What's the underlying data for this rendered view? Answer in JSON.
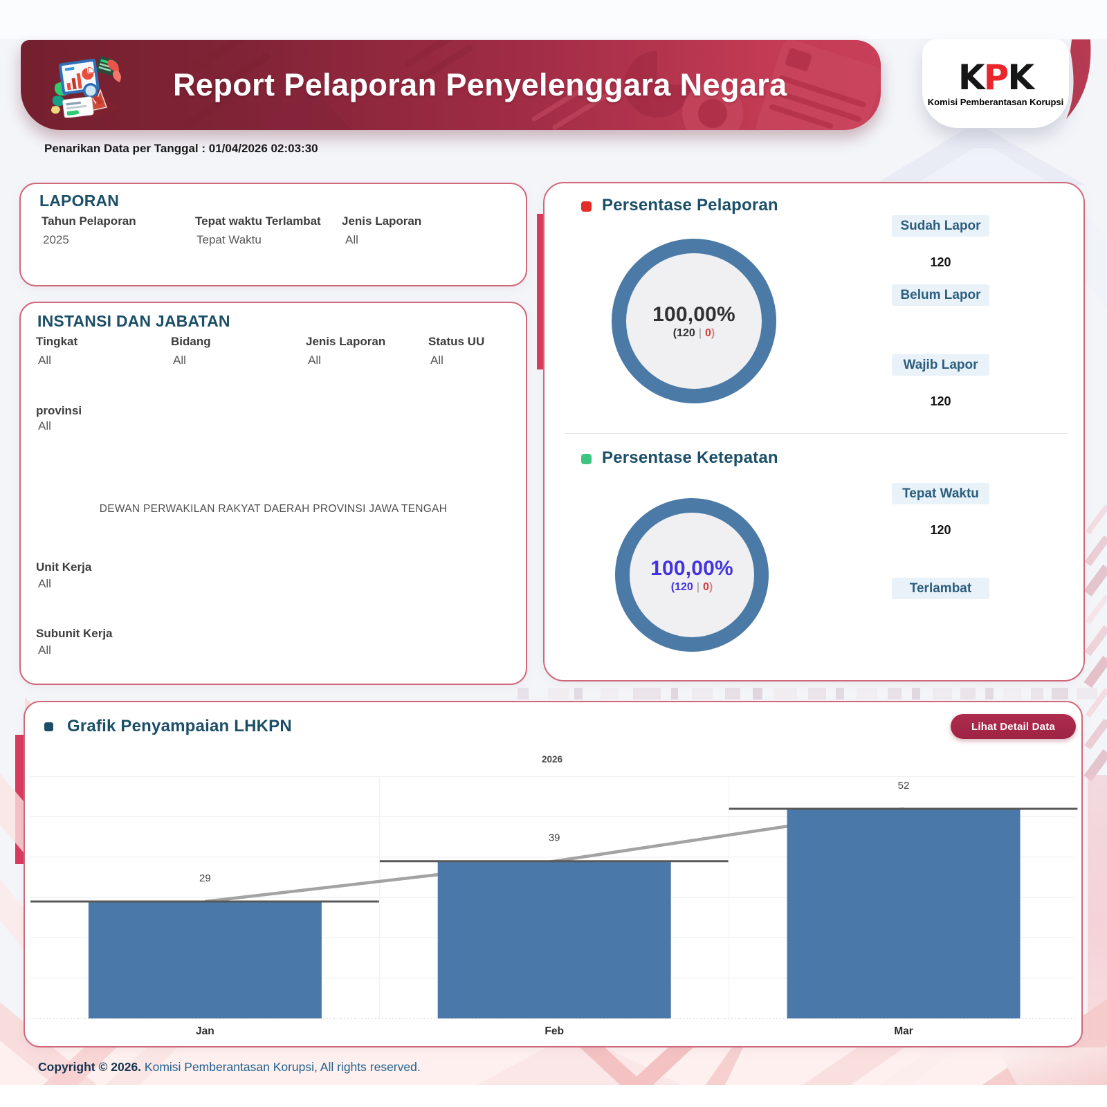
{
  "header": {
    "title": "Report Pelaporan Penyelenggara Negara",
    "logo": {
      "k1": "K",
      "p": "P",
      "k2": "K",
      "subtitle": "Komisi Pemberantasan Korupsi"
    },
    "date_label": "Penarikan Data per Tanggal : 01/04/2026 02:03:30"
  },
  "laporan": {
    "title": "LAPORAN",
    "fields": [
      {
        "label": "Tahun Pelaporan",
        "value": "2025"
      },
      {
        "label": "Tepat waktu Terlambat",
        "value": "Tepat Waktu"
      },
      {
        "label": "Jenis Laporan",
        "value": "All"
      }
    ]
  },
  "instansi": {
    "title": "INSTANSI DAN JABATAN",
    "fields": [
      {
        "label": "Tingkat",
        "value": "All"
      },
      {
        "label": "Bidang",
        "value": "All"
      },
      {
        "label": "Jenis Laporan",
        "value": "All"
      },
      {
        "label": "Status UU",
        "value": "All"
      }
    ],
    "provinsi": {
      "label": "provinsi",
      "value": "All"
    },
    "instansi_name": "DEWAN PERWAKILAN RAKYAT DAERAH PROVINSI JAWA TENGAH",
    "unit_kerja": {
      "label": "Unit Kerja",
      "value": "All"
    },
    "subunit_kerja": {
      "label": "Subunit Kerja",
      "value": "All"
    }
  },
  "pelaporan": {
    "title": "Persentase Pelaporan",
    "bullet_color": "#e32d2a",
    "percent": "100,00%",
    "detail": {
      "open": "(120",
      "sep": "|",
      "zero": "0",
      "close": ")"
    },
    "labels": [
      {
        "text": "Sudah Lapor",
        "value": "120"
      },
      {
        "text": "Belum Lapor",
        "value": ""
      },
      {
        "text": "Wajib Lapor",
        "value": "120"
      }
    ]
  },
  "ketepatan": {
    "title": "Persentase Ketepatan",
    "bullet_color": "#3ec581",
    "percent": "100,00%",
    "detail": {
      "open": "(120",
      "sep": "|",
      "zero": "0",
      "close": ")"
    },
    "labels": [
      {
        "text": "Tepat Waktu",
        "value": "120"
      },
      {
        "text": "Terlambat",
        "value": ""
      }
    ]
  },
  "grafik": {
    "title": "Grafik Penyampaian LHKPN",
    "bullet_color": "#1d4e68",
    "button_label": "Lihat Detail Data"
  },
  "chart_data": {
    "type": "bar",
    "title": "Grafik Penyampaian LHKPN",
    "year_header": "2026",
    "categories": [
      "Jan",
      "Feb",
      "Mar"
    ],
    "values": [
      29,
      39,
      52
    ],
    "bar_color": "#4a78a8",
    "trend_line": true,
    "ylim": [
      0,
      60
    ],
    "gridline_step": 10,
    "legend": "none"
  },
  "footer": {
    "bold": "Copyright © 2026.",
    "rest": " Komisi Pemberantasan Korupsi, All rights reserved."
  }
}
